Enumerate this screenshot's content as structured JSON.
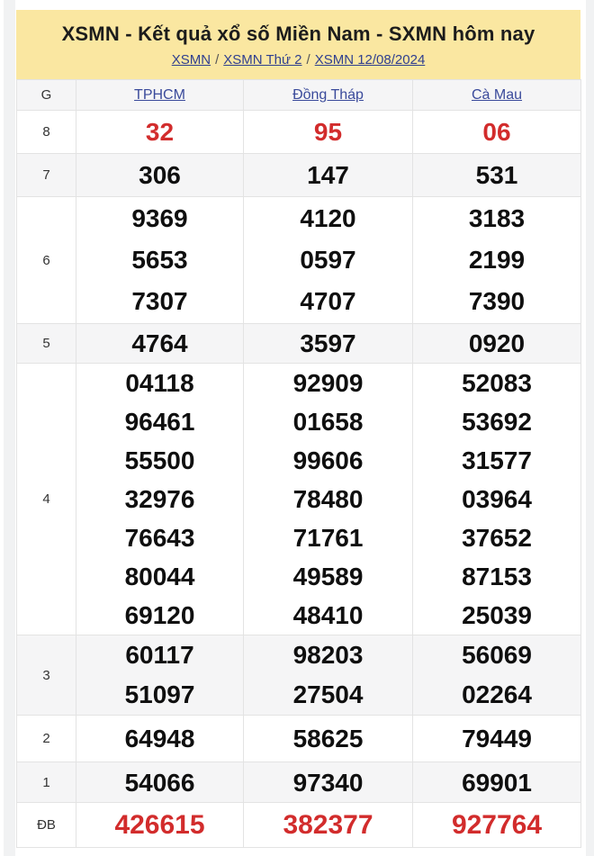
{
  "header": {
    "title": "XSMN - Kết quả xổ số Miền Nam - SXMN hôm nay",
    "breadcrumb": [
      {
        "label": "XSMN"
      },
      {
        "label": "XSMN Thứ 2"
      },
      {
        "label": "XSMN 12/08/2024"
      }
    ],
    "breadcrumb_separator": "/"
  },
  "table": {
    "corner_label": "G",
    "columns": [
      "TPHCM",
      "Đồng Tháp",
      "Cà Mau"
    ],
    "rows": [
      {
        "label": "8",
        "highlight": true,
        "cells": [
          [
            "32"
          ],
          [
            "95"
          ],
          [
            "06"
          ]
        ]
      },
      {
        "label": "7",
        "highlight": false,
        "cells": [
          [
            "306"
          ],
          [
            "147"
          ],
          [
            "531"
          ]
        ]
      },
      {
        "label": "6",
        "highlight": false,
        "cells": [
          [
            "9369",
            "5653",
            "7307"
          ],
          [
            "4120",
            "0597",
            "4707"
          ],
          [
            "3183",
            "2199",
            "7390"
          ]
        ]
      },
      {
        "label": "5",
        "highlight": false,
        "cells": [
          [
            "4764"
          ],
          [
            "3597"
          ],
          [
            "0920"
          ]
        ]
      },
      {
        "label": "4",
        "highlight": false,
        "cells": [
          [
            "04118",
            "96461",
            "55500",
            "32976",
            "76643",
            "80044",
            "69120"
          ],
          [
            "92909",
            "01658",
            "99606",
            "78480",
            "71761",
            "49589",
            "48410"
          ],
          [
            "52083",
            "53692",
            "31577",
            "03964",
            "37652",
            "87153",
            "25039"
          ]
        ]
      },
      {
        "label": "3",
        "highlight": false,
        "cells": [
          [
            "60117",
            "51097"
          ],
          [
            "98203",
            "27504"
          ],
          [
            "56069",
            "02264"
          ]
        ]
      },
      {
        "label": "2",
        "highlight": false,
        "cells": [
          [
            "64948"
          ],
          [
            "58625"
          ],
          [
            "79449"
          ]
        ]
      },
      {
        "label": "1",
        "highlight": false,
        "cells": [
          [
            "54066"
          ],
          [
            "97340"
          ],
          [
            "69901"
          ]
        ]
      },
      {
        "label": "ĐB",
        "highlight": true,
        "cells": [
          [
            "426615"
          ],
          [
            "382377"
          ],
          [
            "927764"
          ]
        ]
      }
    ]
  },
  "colors": {
    "header_yellow": "#fae7a1",
    "accent_red": "#d22c2c",
    "cutoff_red": "#c11b1b",
    "link_blue": "#3a4a9b",
    "stripe_gray": "#f5f5f6"
  }
}
